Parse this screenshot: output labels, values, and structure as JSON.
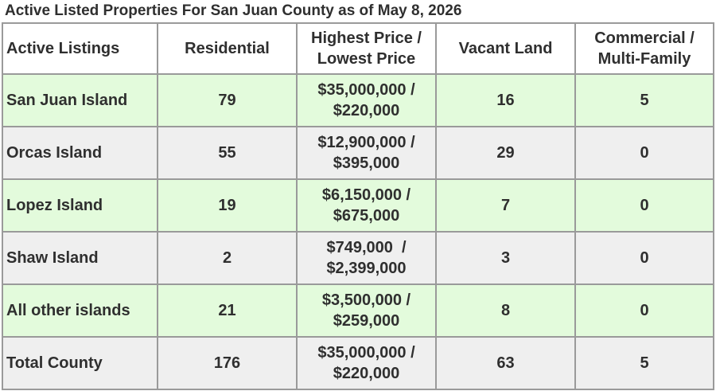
{
  "title": "Active Listed Properties For San Juan County as of May 8, 2026",
  "colors": {
    "green_row": "#e3fbdc",
    "grey_row": "#efefef",
    "border": "#9a9a9a",
    "text": "#2f2f2f"
  },
  "table": {
    "headers": {
      "listings": "Active Listings",
      "residential": "Residential",
      "price_line1": "Highest Price /",
      "price_line2": "Lowest Price",
      "vacant": "Vacant Land",
      "commercial_line1": "Commercial /",
      "commercial_line2": "Multi-Family"
    },
    "rows": [
      {
        "name": "San Juan Island",
        "residential": "79",
        "price_high": "$35,000,000 /",
        "price_low": "$220,000",
        "vacant": "16",
        "commercial": "5"
      },
      {
        "name": "Orcas Island",
        "residential": "55",
        "price_high": "$12,900,000 /",
        "price_low": "$395,000",
        "vacant": "29",
        "commercial": "0"
      },
      {
        "name": "Lopez Island",
        "residential": "19",
        "price_high": "$6,150,000 /",
        "price_low": "$675,000",
        "vacant": "7",
        "commercial": "0"
      },
      {
        "name": "Shaw Island",
        "residential": "2",
        "price_high": "$749,000  /",
        "price_low": "$2,399,000",
        "vacant": "3",
        "commercial": "0"
      },
      {
        "name": "All other islands",
        "residential": "21",
        "price_high": "$3,500,000 /",
        "price_low": "$259,000",
        "vacant": "8",
        "commercial": "0"
      },
      {
        "name": "Total County",
        "residential": "176",
        "price_high": "$35,000,000 /",
        "price_low": "$220,000",
        "vacant": "63",
        "commercial": "5"
      }
    ]
  }
}
